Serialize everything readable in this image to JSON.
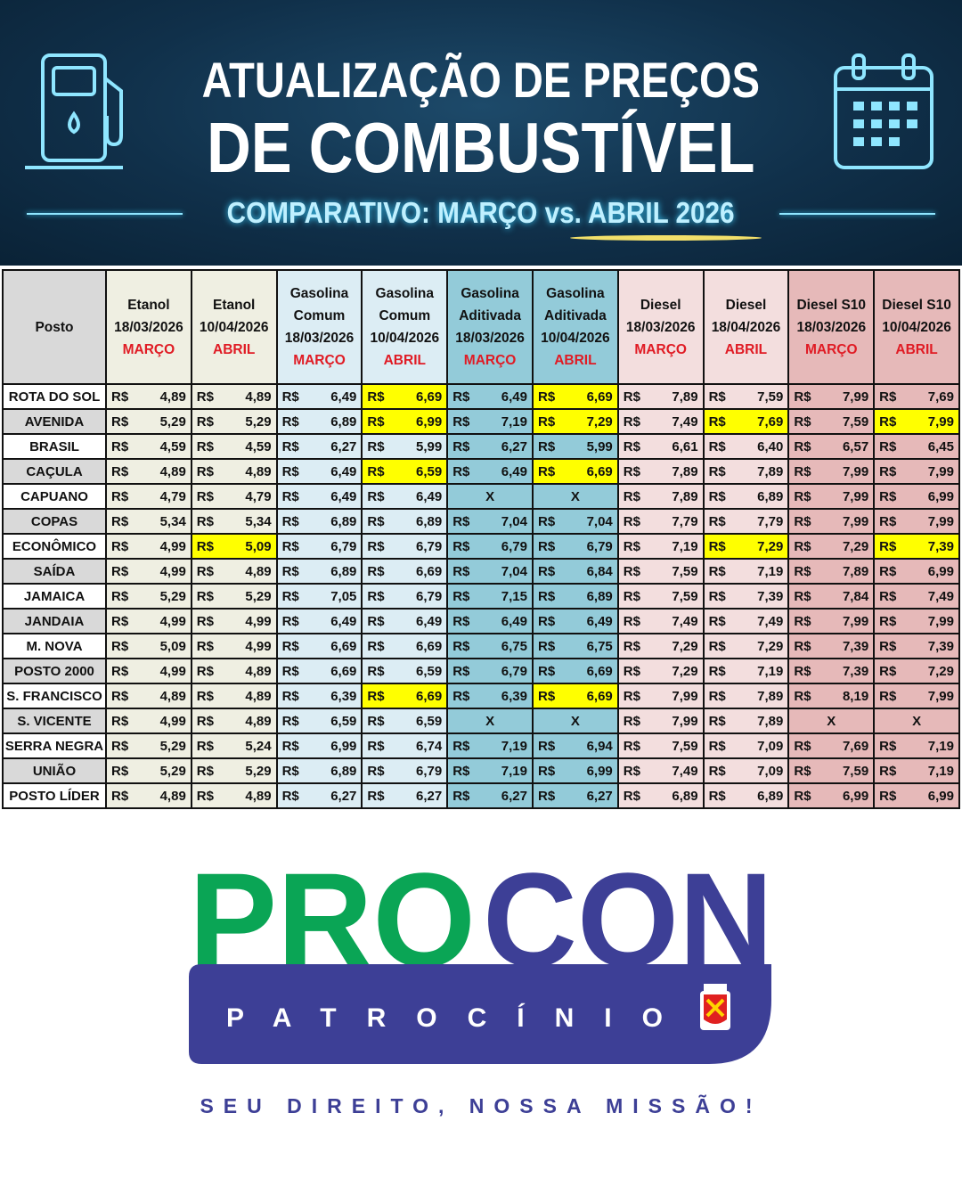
{
  "banner": {
    "title_line1": "ATUALIZAÇÃO DE PREÇOS",
    "title_line2": "DE COMBUSTÍVEL",
    "subtitle": "COMPARATIVO: MARÇO vs. ABRIL 2026",
    "icons": [
      "fuel-pump-icon",
      "calendar-icon"
    ]
  },
  "table": {
    "posto_header": "Posto",
    "currency": "R$",
    "columns": [
      {
        "fuel": [
          "Etanol"
        ],
        "date": "18/03/2026",
        "month": "MARÇO",
        "color": "#efefe2"
      },
      {
        "fuel": [
          "Etanol"
        ],
        "date": "10/04/2026",
        "month": "ABRIL",
        "color": "#efefe2"
      },
      {
        "fuel": [
          "Gasolina",
          "Comum"
        ],
        "date": "18/03/2026",
        "month": "MARÇO",
        "color": "#dcedf4"
      },
      {
        "fuel": [
          "Gasolina",
          "Comum"
        ],
        "date": "10/04/2026",
        "month": "ABRIL",
        "color": "#dcedf4"
      },
      {
        "fuel": [
          "Gasolina",
          "Aditivada"
        ],
        "date": "18/03/2026",
        "month": "MARÇO",
        "color": "#93cbd9"
      },
      {
        "fuel": [
          "Gasolina",
          "Aditivada"
        ],
        "date": "10/04/2026",
        "month": "ABRIL",
        "color": "#93cbd9"
      },
      {
        "fuel": [
          "Diesel"
        ],
        "date": "18/03/2026",
        "month": "MARÇO",
        "color": "#f3dede"
      },
      {
        "fuel": [
          "Diesel"
        ],
        "date": "18/04/2026",
        "month": "ABRIL",
        "color": "#f3dede"
      },
      {
        "fuel": [
          "Diesel S10"
        ],
        "date": "18/03/2026",
        "month": "MARÇO",
        "color": "#e6b9b9"
      },
      {
        "fuel": [
          "Diesel S10"
        ],
        "date": "10/04/2026",
        "month": "ABRIL",
        "color": "#e6b9b9"
      }
    ],
    "highlight_color": "#ffff00",
    "rows": [
      {
        "posto": "ROTA DO SOL",
        "prices": [
          "4,89",
          "4,89",
          "6,49",
          "6,69",
          "6,49",
          "6,69",
          "7,89",
          "7,59",
          "7,99",
          "7,69"
        ],
        "highlighted": [
          3,
          5
        ]
      },
      {
        "posto": "AVENIDA",
        "prices": [
          "5,29",
          "5,29",
          "6,89",
          "6,99",
          "7,19",
          "7,29",
          "7,49",
          "7,69",
          "7,59",
          "7,99"
        ],
        "highlighted": [
          3,
          5,
          7,
          9
        ]
      },
      {
        "posto": "BRASIL",
        "prices": [
          "4,59",
          "4,59",
          "6,27",
          "5,99",
          "6,27",
          "5,99",
          "6,61",
          "6,40",
          "6,57",
          "6,45"
        ],
        "highlighted": []
      },
      {
        "posto": "CAÇULA",
        "prices": [
          "4,89",
          "4,89",
          "6,49",
          "6,59",
          "6,49",
          "6,69",
          "7,89",
          "7,89",
          "7,99",
          "7,99"
        ],
        "highlighted": [
          3,
          5
        ]
      },
      {
        "posto": "CAPUANO",
        "prices": [
          "4,79",
          "4,79",
          "6,49",
          "6,49",
          "X",
          "X",
          "7,89",
          "6,89",
          "7,99",
          "6,99"
        ],
        "highlighted": []
      },
      {
        "posto": "COPAS",
        "prices": [
          "5,34",
          "5,34",
          "6,89",
          "6,89",
          "7,04",
          "7,04",
          "7,79",
          "7,79",
          "7,99",
          "7,99"
        ],
        "highlighted": []
      },
      {
        "posto": "ECONÔMICO",
        "prices": [
          "4,99",
          "5,09",
          "6,79",
          "6,79",
          "6,79",
          "6,79",
          "7,19",
          "7,29",
          "7,29",
          "7,39"
        ],
        "highlighted": [
          1,
          7,
          9
        ]
      },
      {
        "posto": "SAÍDA",
        "prices": [
          "4,99",
          "4,89",
          "6,89",
          "6,69",
          "7,04",
          "6,84",
          "7,59",
          "7,19",
          "7,89",
          "6,99"
        ],
        "highlighted": []
      },
      {
        "posto": "JAMAICA",
        "prices": [
          "5,29",
          "5,29",
          "7,05",
          "6,79",
          "7,15",
          "6,89",
          "7,59",
          "7,39",
          "7,84",
          "7,49"
        ],
        "highlighted": []
      },
      {
        "posto": "JANDAIA",
        "prices": [
          "4,99",
          "4,99",
          "6,49",
          "6,49",
          "6,49",
          "6,49",
          "7,49",
          "7,49",
          "7,99",
          "7,99"
        ],
        "highlighted": []
      },
      {
        "posto": "M. NOVA",
        "prices": [
          "5,09",
          "4,99",
          "6,69",
          "6,69",
          "6,75",
          "6,75",
          "7,29",
          "7,29",
          "7,39",
          "7,39"
        ],
        "highlighted": []
      },
      {
        "posto": "POSTO 2000",
        "prices": [
          "4,99",
          "4,89",
          "6,69",
          "6,59",
          "6,79",
          "6,69",
          "7,29",
          "7,19",
          "7,39",
          "7,29"
        ],
        "highlighted": []
      },
      {
        "posto": "S. FRANCISCO",
        "prices": [
          "4,89",
          "4,89",
          "6,39",
          "6,69",
          "6,39",
          "6,69",
          "7,99",
          "7,89",
          "8,19",
          "7,99"
        ],
        "highlighted": [
          3,
          5
        ]
      },
      {
        "posto": "S. VICENTE",
        "prices": [
          "4,99",
          "4,89",
          "6,59",
          "6,59",
          "X",
          "X",
          "7,99",
          "7,89",
          "X",
          "X"
        ],
        "highlighted": []
      },
      {
        "posto": "SERRA NEGRA",
        "prices": [
          "5,29",
          "5,24",
          "6,99",
          "6,74",
          "7,19",
          "6,94",
          "7,59",
          "7,09",
          "7,69",
          "7,19"
        ],
        "highlighted": []
      },
      {
        "posto": "UNIÃO",
        "prices": [
          "5,29",
          "5,29",
          "6,89",
          "6,79",
          "7,19",
          "6,99",
          "7,49",
          "7,09",
          "7,59",
          "7,19"
        ],
        "highlighted": []
      },
      {
        "posto": "POSTO LÍDER",
        "prices": [
          "4,89",
          "4,89",
          "6,27",
          "6,27",
          "6,27",
          "6,27",
          "6,89",
          "6,89",
          "6,99",
          "6,99"
        ],
        "highlighted": []
      }
    ]
  },
  "logo": {
    "text_pro": "PRO",
    "text_con": "CON",
    "city": "PATROCÍNIO",
    "green": "#0aa555",
    "purple": "#3d3f96",
    "emblem_text": "PATROCÍNIO"
  },
  "slogan": "SEU DIREITO, NOSSA MISSÃO!"
}
